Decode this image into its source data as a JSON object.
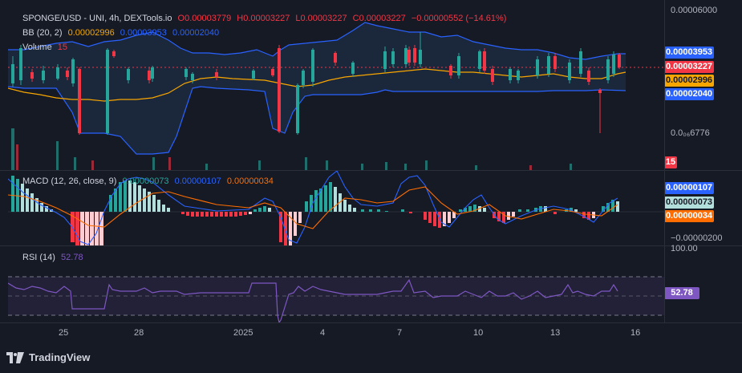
{
  "main": {
    "symbol": "SPONGE/USD - UNI, 4h, DEXTools.io",
    "ohlc": {
      "o": "O0.00003779",
      "h": "H0.00003227",
      "l": "L0.00003227",
      "c": "C0.00003227",
      "chg": "−0.00000552 (−14.61%)"
    },
    "bb_label": "BB (20, 2)",
    "bb_mid": "0.00002996",
    "bb_upper": "0.00003953",
    "bb_lower": "0.00002040",
    "volume_label": "Volume",
    "volume_value": "15"
  },
  "price_scale": {
    "top": "0.00006000",
    "bottom": "0.0₀₆6776",
    "tags": {
      "upper": "0.00003953",
      "price": "0.00003227",
      "mid": "0.00002996",
      "lower": "0.00002040",
      "volume": "15"
    }
  },
  "macd": {
    "label": "MACD (12, 26, close, 9)",
    "v1": "0.00000073",
    "v2": "0.00000107",
    "v3": "0.00000034",
    "scale_bottom": "−0.00000200",
    "tags": {
      "macd": "0.00000107",
      "hist": "0.00000073",
      "signal": "0.00000034"
    }
  },
  "rsi": {
    "label": "RSI (14)",
    "value": "52.78",
    "scale_top": "100.00",
    "tag": "52.78"
  },
  "x_axis": [
    "25",
    "28",
    "2025",
    "4",
    "7",
    "10",
    "13",
    "16"
  ],
  "footer": "TradingView",
  "colors": {
    "bg": "#161a25",
    "up": "#26a69a",
    "down": "#f23645",
    "bb": "#2962ff",
    "mid": "#f7a600",
    "rsi": "#7e57c2",
    "macd_line": "#2962ff",
    "signal_line": "#ff6d00"
  }
}
